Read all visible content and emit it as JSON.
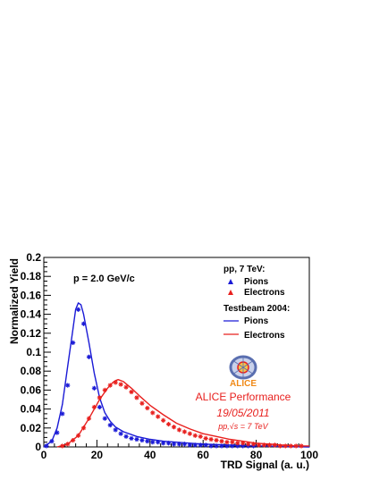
{
  "chart_data": {
    "type": "line",
    "xlabel": "TRD Signal (a. u.)",
    "ylabel": "Normalized Yield",
    "xlim": [
      0,
      100
    ],
    "ylim": [
      0,
      0.2
    ],
    "x_ticks": [
      0,
      20,
      40,
      60,
      80,
      100
    ],
    "y_ticks": [
      0,
      0.02,
      0.04,
      0.06,
      0.08,
      0.1,
      0.12,
      0.14,
      0.16,
      0.18,
      0.2
    ],
    "annotation": "p = 2.0 GeV/c",
    "grid": false,
    "legend": {
      "position": "right",
      "group1_title": "pp, 7 TeV:",
      "group2_title": "Testbeam 2004:",
      "pions_label": "Pions",
      "electrons_label": "Electrons"
    },
    "colors": {
      "pions": "#1a1ad6",
      "electrons": "#e8201e"
    },
    "series": [
      {
        "name": "Pions",
        "group": "pp, 7 TeV:",
        "style": "markers",
        "color": "#1a1ad6",
        "points": [
          [
            1,
            0.001
          ],
          [
            3,
            0.006
          ],
          [
            5,
            0.015
          ],
          [
            7,
            0.035
          ],
          [
            9,
            0.065
          ],
          [
            11,
            0.11
          ],
          [
            13,
            0.145
          ],
          [
            15,
            0.13
          ],
          [
            17,
            0.095
          ],
          [
            19,
            0.062
          ],
          [
            21,
            0.042
          ],
          [
            23,
            0.03
          ],
          [
            25,
            0.023
          ],
          [
            27,
            0.018
          ],
          [
            29,
            0.014
          ],
          [
            31,
            0.011
          ],
          [
            33,
            0.009
          ],
          [
            35,
            0.008
          ],
          [
            37,
            0.007
          ],
          [
            39,
            0.006
          ],
          [
            41,
            0.005
          ],
          [
            43,
            0.005
          ],
          [
            45,
            0.004
          ],
          [
            47,
            0.004
          ],
          [
            49,
            0.003
          ],
          [
            51,
            0.003
          ],
          [
            53,
            0.003
          ],
          [
            55,
            0.002
          ],
          [
            57,
            0.002
          ],
          [
            59,
            0.002
          ],
          [
            61,
            0.002
          ],
          [
            63,
            0.001
          ],
          [
            65,
            0.001
          ],
          [
            67,
            0.001
          ],
          [
            69,
            0.001
          ],
          [
            71,
            0.001
          ],
          [
            73,
            0.001
          ],
          [
            75,
            0.001
          ],
          [
            77,
            0.001
          ],
          [
            79,
            0.001
          ]
        ]
      },
      {
        "name": "Electrons",
        "group": "pp, 7 TeV:",
        "style": "markers",
        "color": "#e8201e",
        "points": [
          [
            7,
            0.001
          ],
          [
            9,
            0.003
          ],
          [
            11,
            0.007
          ],
          [
            13,
            0.012
          ],
          [
            15,
            0.02
          ],
          [
            17,
            0.03
          ],
          [
            19,
            0.042
          ],
          [
            21,
            0.052
          ],
          [
            23,
            0.06
          ],
          [
            25,
            0.065
          ],
          [
            27,
            0.068
          ],
          [
            29,
            0.066
          ],
          [
            31,
            0.063
          ],
          [
            33,
            0.058
          ],
          [
            35,
            0.052
          ],
          [
            37,
            0.046
          ],
          [
            39,
            0.041
          ],
          [
            41,
            0.036
          ],
          [
            43,
            0.032
          ],
          [
            45,
            0.028
          ],
          [
            47,
            0.024
          ],
          [
            49,
            0.021
          ],
          [
            51,
            0.018
          ],
          [
            53,
            0.016
          ],
          [
            55,
            0.014
          ],
          [
            57,
            0.012
          ],
          [
            59,
            0.011
          ],
          [
            61,
            0.009
          ],
          [
            63,
            0.008
          ],
          [
            65,
            0.007
          ],
          [
            67,
            0.006
          ],
          [
            69,
            0.005
          ],
          [
            71,
            0.005
          ],
          [
            73,
            0.004
          ],
          [
            75,
            0.004
          ],
          [
            77,
            0.003
          ],
          [
            79,
            0.003
          ],
          [
            81,
            0.002
          ],
          [
            83,
            0.002
          ],
          [
            85,
            0.002
          ],
          [
            87,
            0.002
          ],
          [
            89,
            0.001
          ],
          [
            91,
            0.001
          ],
          [
            93,
            0.001
          ],
          [
            95,
            0.001
          ],
          [
            97,
            0.001
          ]
        ]
      },
      {
        "name": "Pions",
        "group": "Testbeam 2004:",
        "style": "line",
        "color": "#1a1ad6",
        "points": [
          [
            0,
            0
          ],
          [
            3,
            0.006
          ],
          [
            5,
            0.02
          ],
          [
            7,
            0.045
          ],
          [
            9,
            0.085
          ],
          [
            11,
            0.125
          ],
          [
            12,
            0.145
          ],
          [
            13,
            0.152
          ],
          [
            14,
            0.15
          ],
          [
            15,
            0.14
          ],
          [
            17,
            0.11
          ],
          [
            19,
            0.078
          ],
          [
            21,
            0.052
          ],
          [
            23,
            0.036
          ],
          [
            25,
            0.027
          ],
          [
            27,
            0.021
          ],
          [
            30,
            0.016
          ],
          [
            35,
            0.011
          ],
          [
            40,
            0.008
          ],
          [
            45,
            0.006
          ],
          [
            50,
            0.005
          ],
          [
            55,
            0.004
          ],
          [
            60,
            0.003
          ],
          [
            70,
            0.002
          ],
          [
            80,
            0.001
          ],
          [
            100,
            0
          ]
        ]
      },
      {
        "name": "Electrons",
        "group": "Testbeam 2004:",
        "style": "line",
        "color": "#e8201e",
        "points": [
          [
            5,
            0
          ],
          [
            9,
            0.003
          ],
          [
            13,
            0.012
          ],
          [
            17,
            0.03
          ],
          [
            21,
            0.05
          ],
          [
            24,
            0.062
          ],
          [
            26,
            0.068
          ],
          [
            27,
            0.07
          ],
          [
            28,
            0.071
          ],
          [
            30,
            0.069
          ],
          [
            33,
            0.062
          ],
          [
            36,
            0.054
          ],
          [
            40,
            0.044
          ],
          [
            45,
            0.034
          ],
          [
            50,
            0.025
          ],
          [
            55,
            0.019
          ],
          [
            60,
            0.014
          ],
          [
            65,
            0.011
          ],
          [
            70,
            0.008
          ],
          [
            75,
            0.006
          ],
          [
            80,
            0.004
          ],
          [
            85,
            0.003
          ],
          [
            90,
            0.002
          ],
          [
            95,
            0.001
          ],
          [
            100,
            0.001
          ]
        ]
      }
    ]
  },
  "logo": {
    "text": "ALICE",
    "colors": {
      "ring": "#5a6fb0",
      "text": "#f08a18"
    }
  },
  "performance": {
    "title": "ALICE Performance",
    "date": "19/05/2011",
    "collision": "pp,√s = 7 TeV"
  }
}
